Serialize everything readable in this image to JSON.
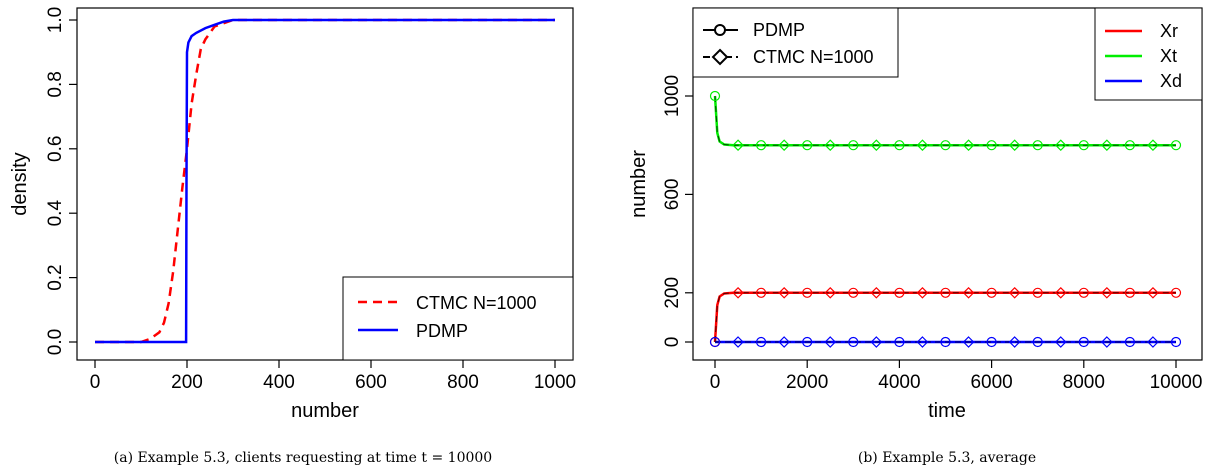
{
  "chart_data": [
    {
      "type": "line",
      "xlabel": "number",
      "ylabel": "density",
      "xlim": [
        0,
        1000
      ],
      "ylim": [
        0,
        1
      ],
      "xticks": [
        "0",
        "200",
        "400",
        "600",
        "800",
        "1000"
      ],
      "yticks": [
        "0.0",
        "0.2",
        "0.4",
        "0.6",
        "0.8",
        "1.0"
      ],
      "legend_position": "bottom-right",
      "caption": "(a) Example 5.3, clients requesting at time t = 10000",
      "series": [
        {
          "name": "CTMC N=1000",
          "color": "#ff0000",
          "dash": "dashed",
          "x": [
            0,
            100,
            120,
            140,
            150,
            160,
            170,
            180,
            190,
            200,
            210,
            220,
            230,
            240,
            250,
            260,
            280,
            300,
            1000
          ],
          "y": [
            0,
            0,
            0.01,
            0.03,
            0.06,
            0.12,
            0.22,
            0.35,
            0.48,
            0.6,
            0.74,
            0.83,
            0.91,
            0.94,
            0.96,
            0.98,
            0.99,
            1.0,
            1.0
          ]
        },
        {
          "name": "PDMP",
          "color": "#0000ff",
          "dash": "solid",
          "x": [
            0,
            198,
            199,
            200,
            203,
            210,
            220,
            240,
            260,
            280,
            300,
            1000
          ],
          "y": [
            0,
            0,
            0.5,
            0.9,
            0.93,
            0.95,
            0.96,
            0.975,
            0.985,
            0.995,
            1.0,
            1.0
          ]
        }
      ]
    },
    {
      "type": "line",
      "xlabel": "time",
      "ylabel": "number",
      "xlim": [
        0,
        10000
      ],
      "ylim": [
        0,
        1000
      ],
      "xticks": [
        "0",
        "2000",
        "4000",
        "6000",
        "8000",
        "10000"
      ],
      "yticks": [
        "0",
        "200",
        "600",
        "1000"
      ],
      "caption": "(b) Example 5.3, average",
      "legend_method": {
        "position": "top-left",
        "entries": [
          {
            "label": "PDMP",
            "marker": "circle"
          },
          {
            "label": "CTMC N=1000",
            "marker": "diamond"
          }
        ]
      },
      "legend_series": {
        "position": "top-right",
        "entries": [
          {
            "label": "Xr",
            "color": "#ff0000"
          },
          {
            "label": "Xt",
            "color": "#00ee00"
          },
          {
            "label": "Xd",
            "color": "#0000ff"
          }
        ]
      },
      "marker_x": [
        0,
        500,
        1000,
        1500,
        2000,
        2500,
        3000,
        3500,
        4000,
        4500,
        5000,
        5500,
        6000,
        6500,
        7000,
        7500,
        8000,
        8500,
        9000,
        9500,
        10000
      ],
      "series": [
        {
          "name": "Xr",
          "color": "#ff0000",
          "x": [
            0,
            50,
            100,
            200,
            400,
            10000
          ],
          "y": [
            0,
            150,
            185,
            197,
            200,
            200
          ]
        },
        {
          "name": "Xt",
          "color": "#00ee00",
          "x": [
            0,
            50,
            100,
            200,
            400,
            10000
          ],
          "y": [
            1000,
            850,
            815,
            803,
            800,
            800
          ]
        },
        {
          "name": "Xd",
          "color": "#0000ff",
          "x": [
            0,
            10000
          ],
          "y": [
            0,
            0
          ]
        }
      ]
    }
  ]
}
